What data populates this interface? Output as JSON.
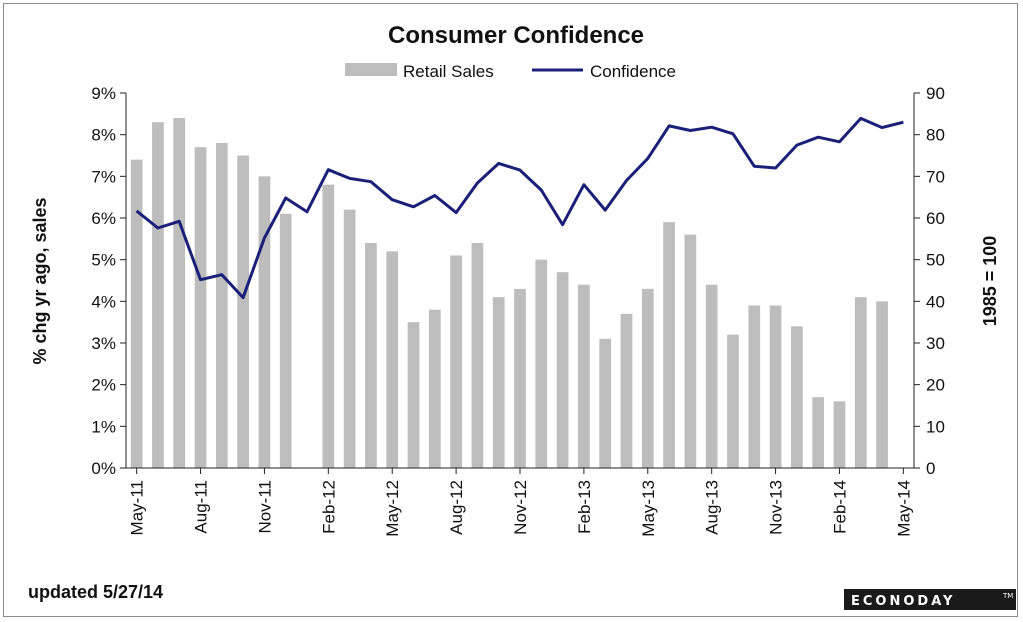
{
  "chart_data": {
    "type": "bar+line",
    "title": "Consumer Confidence",
    "legend": [
      "Retail Sales",
      "Confidence"
    ],
    "legend_position": "top-center",
    "left_axis": {
      "label": "% chg yr ago, sales",
      "ticks": [
        "0%",
        "1%",
        "2%",
        "3%",
        "4%",
        "5%",
        "6%",
        "7%",
        "8%",
        "9%"
      ],
      "range": [
        0,
        9
      ]
    },
    "right_axis": {
      "label": "1985 = 100",
      "ticks": [
        "0",
        "10",
        "20",
        "30",
        "40",
        "50",
        "60",
        "70",
        "80",
        "90"
      ],
      "range": [
        0,
        90
      ]
    },
    "x_ticks": [
      {
        "label": "May-11",
        "index": 0
      },
      {
        "label": "Aug-11",
        "index": 3
      },
      {
        "label": "Nov-11",
        "index": 6
      },
      {
        "label": "Feb-12",
        "index": 9
      },
      {
        "label": "May-12",
        "index": 12
      },
      {
        "label": "Aug-12",
        "index": 15
      },
      {
        "label": "Nov-12",
        "index": 18
      },
      {
        "label": "Feb-13",
        "index": 21
      },
      {
        "label": "May-13",
        "index": 24
      },
      {
        "label": "Aug-13",
        "index": 27
      },
      {
        "label": "Nov-13",
        "index": 30
      },
      {
        "label": "Feb-14",
        "index": 33
      },
      {
        "label": "May-14",
        "index": 36
      }
    ],
    "series": [
      {
        "name": "Retail Sales",
        "kind": "bar",
        "axis": "left",
        "color": "#bdbdbd",
        "values": [
          7.4,
          8.3,
          8.4,
          7.7,
          7.8,
          7.5,
          7.0,
          6.1,
          6.8,
          6.2,
          5.4,
          5.2,
          3.5,
          3.8,
          5.1,
          5.4,
          4.1,
          4.3,
          5.0,
          4.7,
          4.4,
          3.1,
          3.7,
          4.3,
          5.9,
          5.6,
          4.4,
          3.2,
          3.9,
          3.9,
          3.4,
          1.7,
          1.6,
          4.1,
          4.0
        ]
      },
      {
        "name": "Confidence",
        "kind": "line",
        "axis": "right",
        "color": "#1a1f78",
        "values": [
          61.7,
          57.6,
          59.2,
          45.2,
          46.4,
          40.9,
          55.2,
          64.8,
          61.5,
          71.6,
          69.5,
          68.7,
          64.4,
          62.7,
          65.4,
          61.3,
          68.4,
          73.1,
          71.5,
          66.7,
          58.4,
          68.0,
          61.9,
          69.0,
          74.3,
          82.1,
          81.0,
          81.8,
          80.2,
          72.4,
          72.0,
          77.5,
          79.4,
          78.3,
          83.9,
          81.7,
          83.0
        ]
      }
    ],
    "bar_positions": [
      0,
      1,
      2,
      3,
      4,
      5,
      6,
      7,
      9,
      10,
      11,
      12,
      13,
      14,
      15,
      16,
      17,
      18,
      19,
      20,
      21,
      22,
      23,
      24,
      25,
      26,
      27,
      28,
      29,
      30,
      31,
      32,
      33,
      34,
      35
    ]
  },
  "footer": {
    "updated": "updated  5/27/14",
    "logo": "ECONODAY",
    "logo_mark": "TM"
  }
}
